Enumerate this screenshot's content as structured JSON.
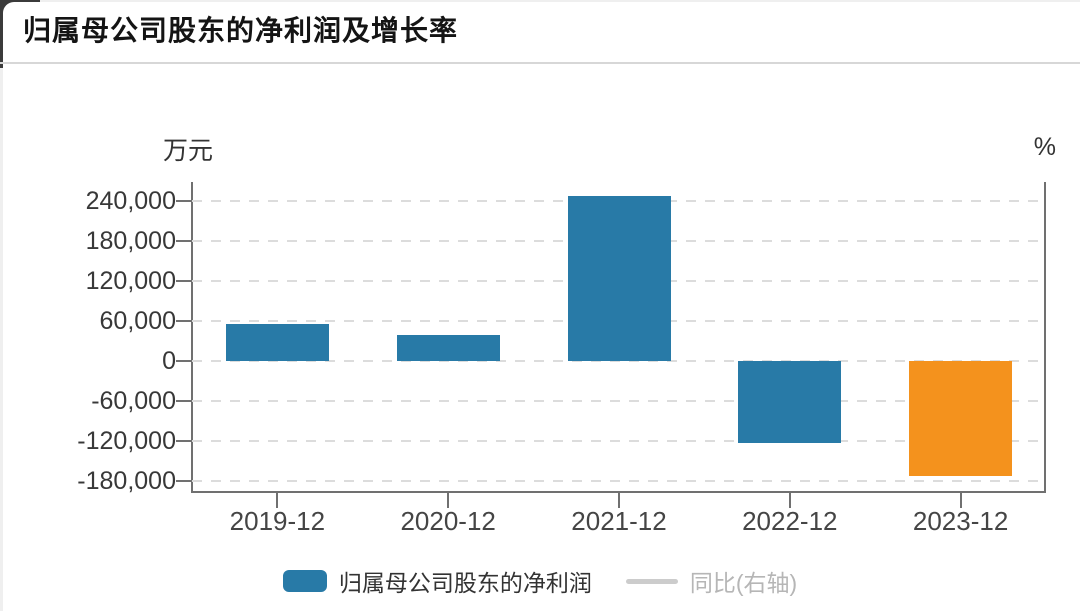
{
  "page": {
    "title": "归属母公司股东的净利润及增长率"
  },
  "chart_data": {
    "type": "bar",
    "title": "归属母公司股东的净利润及增长率",
    "unit_left": "万元",
    "unit_right": "%",
    "categories": [
      "2019-12",
      "2020-12",
      "2021-12",
      "2022-12",
      "2023-12"
    ],
    "series": [
      {
        "name": "归属母公司股东的净利润",
        "type": "bar",
        "axis": "left",
        "visible": true,
        "values": [
          55000,
          39000,
          248000,
          -122500,
          -172500
        ],
        "colors": [
          "#287AA7",
          "#287AA7",
          "#287AA7",
          "#287AA7",
          "#F4921D"
        ]
      },
      {
        "name": "同比(右轴)",
        "type": "line",
        "axis": "right",
        "visible": false,
        "values": []
      }
    ],
    "y_ticks": [
      {
        "value": 240000,
        "label": "240,000"
      },
      {
        "value": 180000,
        "label": "180,000"
      },
      {
        "value": 120000,
        "label": "120,000"
      },
      {
        "value": 60000,
        "label": "60,000"
      },
      {
        "value": 0,
        "label": "0"
      },
      {
        "value": -60000,
        "label": "-60,000"
      },
      {
        "value": -120000,
        "label": "-120,000"
      },
      {
        "value": -180000,
        "label": "-180,000"
      }
    ],
    "ylim": [
      -196500,
      268500
    ],
    "grid": true,
    "gridline_style": "dashed",
    "legend_position": "bottom"
  },
  "legend": {
    "items": [
      {
        "label": "归属母公司股东的净利润",
        "swatch_color": "#287AA7",
        "type": "bar",
        "active": true
      },
      {
        "label": "同比(右轴)",
        "swatch_color": "#CCCCCC",
        "type": "line",
        "active": false
      }
    ]
  },
  "colors": {
    "bar_blue": "#287AA7",
    "bar_orange": "#F4921D",
    "axis_line": "#707070",
    "gridline": "#DCDCDC",
    "divider": "#D7D7D7",
    "inactive_legend_text": "#B6B6B6"
  }
}
